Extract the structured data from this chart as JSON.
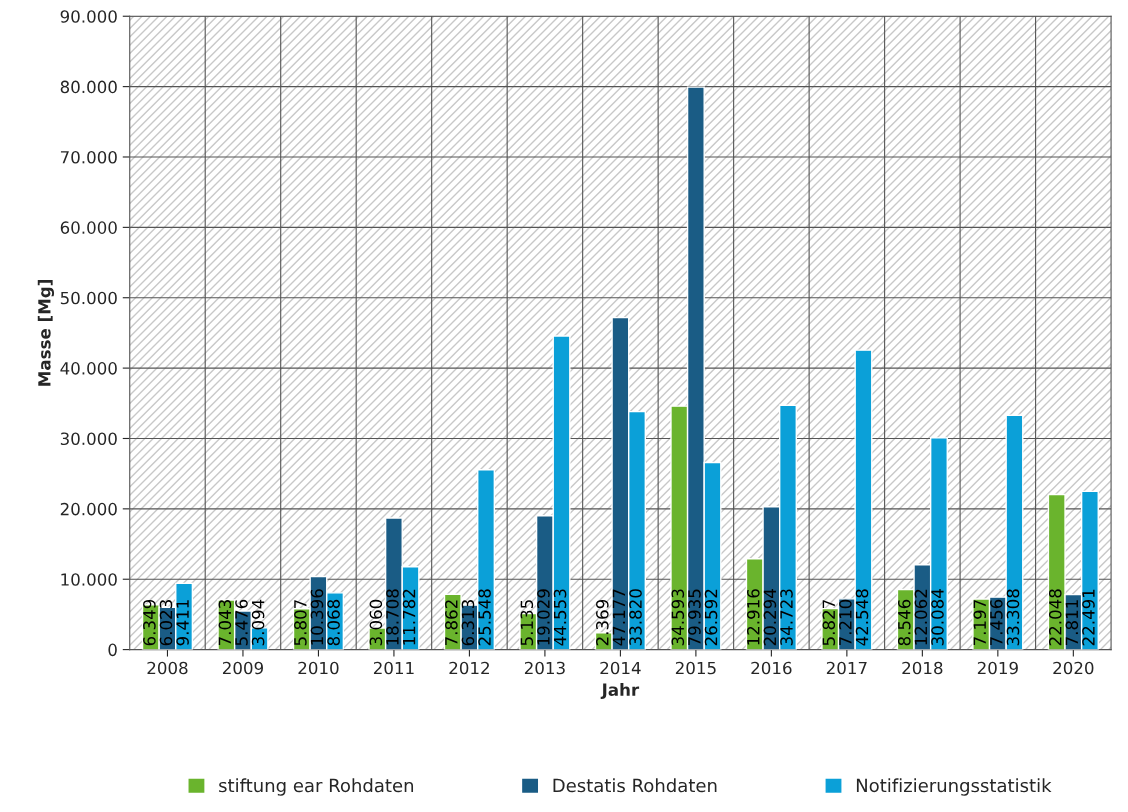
{
  "chart_data": {
    "type": "bar",
    "xlabel": "Jahr",
    "ylabel": "Masse [Mg]",
    "categories": [
      "2008",
      "2009",
      "2010",
      "2011",
      "2012",
      "2013",
      "2014",
      "2015",
      "2016",
      "2017",
      "2018",
      "2019",
      "2020"
    ],
    "series": [
      {
        "name": "stiftung ear Rohdaten",
        "color": "#6ab42d",
        "values": [
          6349,
          7043,
          5807,
          3060,
          7862,
          5135,
          2369,
          34593,
          12916,
          5827,
          8546,
          7197,
          22048
        ],
        "value_labels": [
          "6.349",
          "7.043",
          "5.807",
          "3.060",
          "7.862",
          "5.135",
          "2.369",
          "34.593",
          "12.916",
          "5.827",
          "8.546",
          "7.197",
          "22.048"
        ]
      },
      {
        "name": "Destatis Rohdaten",
        "color": "#1a5c85",
        "values": [
          6023,
          5476,
          10396,
          18708,
          6313,
          19029,
          47177,
          79935,
          20294,
          7210,
          12062,
          7456,
          7811
        ],
        "value_labels": [
          "6.023",
          "5.476",
          "10.396",
          "18.708",
          "6.313",
          "19.029",
          "47.177",
          "79.935",
          "20.294",
          "7.210",
          "12.062",
          "7.456",
          "7.811"
        ]
      },
      {
        "name": "Notifizierungsstatistik",
        "color": "#0ba0d8",
        "values": [
          9411,
          3094,
          8068,
          11782,
          25548,
          44553,
          33820,
          26592,
          34723,
          42548,
          30084,
          33308,
          22491
        ],
        "value_labels": [
          "9.411",
          "3.094",
          "8.068",
          "11.782",
          "25.548",
          "44.553",
          "33.820",
          "26.592",
          "34.723",
          "42.548",
          "30.084",
          "33.308",
          "22.491"
        ]
      }
    ],
    "ylim": [
      0,
      90000
    ],
    "yticks": [
      0,
      {
        "value": 10000,
        "label": "10.000"
      },
      {
        "value": 20000,
        "label": "20.000"
      },
      {
        "value": 30000,
        "label": "30.000"
      },
      {
        "value": 40000,
        "label": "40.000"
      },
      {
        "value": 50000,
        "label": "50.000"
      },
      {
        "value": 60000,
        "label": "60.000"
      },
      {
        "value": 70000,
        "label": "70.000"
      },
      {
        "value": 80000,
        "label": "80.000"
      },
      {
        "value": 90000,
        "label": "90.000"
      }
    ],
    "grid": true,
    "legend": "bottom"
  }
}
